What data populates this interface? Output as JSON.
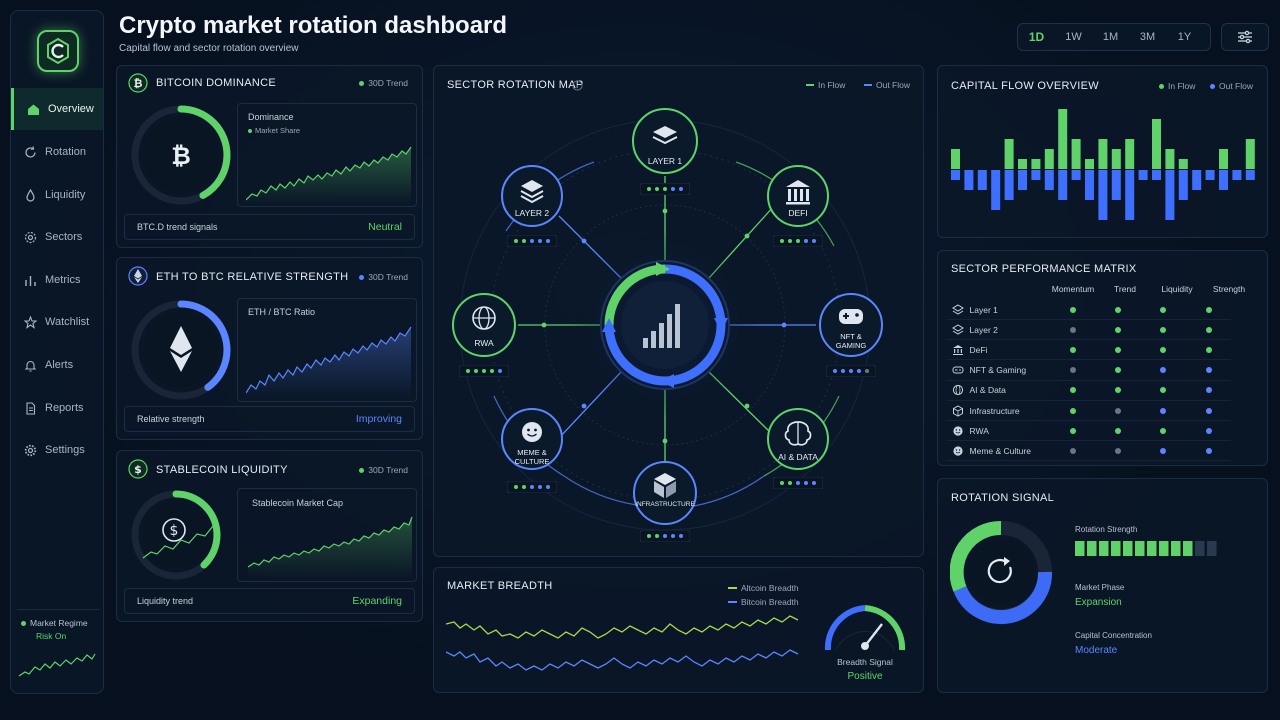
{
  "header": {
    "title": "Crypto market rotation dashboard",
    "subtitle": "Capital flow and sector rotation overview",
    "timeframes": [
      "1D",
      "1W",
      "1M",
      "3M",
      "1Y"
    ],
    "active_timeframe": "1D"
  },
  "sidebar": {
    "items": [
      {
        "label": "Overview",
        "icon": "home-icon",
        "active": true
      },
      {
        "label": "Rotation",
        "icon": "refresh-icon"
      },
      {
        "label": "Liquidity",
        "icon": "droplet-icon"
      },
      {
        "label": "Sectors",
        "icon": "gear-icon"
      },
      {
        "label": "Metrics",
        "icon": "bar-chart-icon"
      },
      {
        "label": "Watchlist",
        "icon": "star-icon"
      },
      {
        "label": "Alerts",
        "icon": "bell-icon"
      },
      {
        "label": "Reports",
        "icon": "document-icon"
      },
      {
        "label": "Settings",
        "icon": "settings-icon"
      }
    ],
    "regime": {
      "label": "Market Regime",
      "value": "Risk On"
    }
  },
  "btc_dominance": {
    "title": "BITCOIN DOMINANCE",
    "trend_label": "30D Trend",
    "chart_title": "Dominance",
    "chart_legend": "Market Share",
    "gauge_fill": 0.42,
    "footer_label": "BTC.D trend signals",
    "footer_value": "Neutral"
  },
  "eth_btc": {
    "title": "ETH TO BTC RELATIVE STRENGTH",
    "trend_label": "30D Trend",
    "chart_title": "ETH / BTC Ratio",
    "gauge_fill": 0.4,
    "footer_label": "Relative strength",
    "footer_value": "Improving"
  },
  "stablecoin": {
    "title": "STABLECOIN LIQUIDITY",
    "trend_label": "30D Trend",
    "chart_title": "Stablecoin Market Cap",
    "gauge_fill": 0.38,
    "footer_label": "Liquidity trend",
    "footer_value": "Expanding"
  },
  "rotation_map": {
    "title": "SECTOR ROTATION MAP",
    "legend_in": "In Flow",
    "legend_out": "Out Flow",
    "nodes": [
      {
        "label": "LAYER 1",
        "icon": "layers-icon",
        "color": "#5fd36a"
      },
      {
        "label": "DEFI",
        "icon": "bank-icon",
        "color": "#5fd36a"
      },
      {
        "label": "NFT & GAMING",
        "icon": "gamepad-icon",
        "color": "#5b86ff"
      },
      {
        "label": "AI & DATA",
        "icon": "brain-icon",
        "color": "#5fd36a"
      },
      {
        "label": "INFRASTRUCTURE",
        "icon": "cube-icon",
        "color": "#5b86ff"
      },
      {
        "label": "MEME & CULTURE",
        "icon": "smile-icon",
        "color": "#5b86ff"
      },
      {
        "label": "RWA",
        "icon": "globe-icon",
        "color": "#5fd36a"
      },
      {
        "label": "LAYER 2",
        "icon": "layers-icon",
        "color": "#5b86ff"
      }
    ]
  },
  "capital_flow": {
    "title": "CAPITAL FLOW OVERVIEW",
    "legend_in": "In Flow",
    "legend_out": "Out Flow",
    "in": [
      2,
      0,
      0,
      0,
      3,
      1,
      1,
      2,
      6,
      3,
      1,
      3,
      2,
      3,
      0,
      5,
      2,
      1,
      0,
      0,
      2,
      0,
      3
    ],
    "out": [
      -1,
      -2,
      -2,
      -4,
      -3,
      -2,
      -1,
      -2,
      -3,
      -1,
      -3,
      -5,
      -3,
      -5,
      -1,
      -1,
      -5,
      -3,
      -2,
      -1,
      -2,
      -1,
      -1
    ]
  },
  "matrix": {
    "title": "SECTOR PERFORMANCE MATRIX",
    "columns": [
      "Momentum",
      "Trend",
      "Liquidity",
      "Strength"
    ],
    "rows": [
      {
        "name": "Layer 1",
        "icon": "layers-icon",
        "values": [
          "g",
          "g",
          "g",
          "g"
        ]
      },
      {
        "name": "Layer 2",
        "icon": "layers-icon",
        "values": [
          "n",
          "g",
          "g",
          "g"
        ]
      },
      {
        "name": "DeFi",
        "icon": "bank-icon",
        "values": [
          "g",
          "g",
          "g",
          "g"
        ]
      },
      {
        "name": "NFT & Gaming",
        "icon": "gamepad-icon",
        "values": [
          "n",
          "g",
          "b",
          "b"
        ]
      },
      {
        "name": "AI & Data",
        "icon": "globe-icon",
        "values": [
          "g",
          "g",
          "g",
          "b"
        ]
      },
      {
        "name": "Infrastructure",
        "icon": "cube-icon",
        "values": [
          "g",
          "n",
          "b",
          "b"
        ]
      },
      {
        "name": "RWA",
        "icon": "smile-icon",
        "values": [
          "g",
          "g",
          "g",
          "b"
        ]
      },
      {
        "name": "Meme & Culture",
        "icon": "smile-icon",
        "values": [
          "n",
          "n",
          "b",
          "b"
        ]
      }
    ]
  },
  "rotation_signal": {
    "title": "ROTATION SIGNAL",
    "strength_label": "Rotation Strength",
    "strength_level": 0.8,
    "phase_label": "Market Phase",
    "phase_value": "Expansion",
    "concentration_label": "Capital Concentration",
    "concentration_value": "Moderate"
  },
  "market_breadth": {
    "title": "MARKET BREADTH",
    "legend_altcoin": "Altcoin Breadth",
    "legend_bitcoin": "Bitcoin Breadth",
    "signal_label": "Breadth Signal",
    "signal_value": "Positive"
  },
  "colors": {
    "green": "#5fd36a",
    "blue": "#5b86ff",
    "neutral": "#6b7584"
  }
}
